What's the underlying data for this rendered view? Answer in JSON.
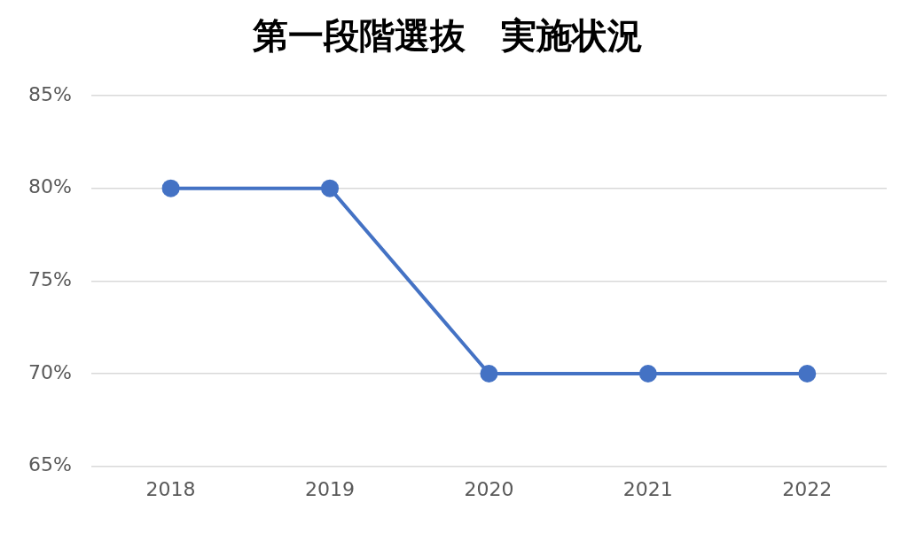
{
  "chart_data": {
    "type": "line",
    "title": "第一段階選抜　実施状況",
    "categories": [
      "2018",
      "2019",
      "2020",
      "2021",
      "2022"
    ],
    "series": [
      {
        "color": "#4472c4",
        "values": [
          80,
          80,
          70,
          70,
          70
        ]
      }
    ],
    "ylim": [
      65,
      85
    ],
    "yticks": [
      {
        "value": 65,
        "label": "65%"
      },
      {
        "value": 70,
        "label": "70%"
      },
      {
        "value": 75,
        "label": "75%"
      },
      {
        "value": 80,
        "label": "80%"
      },
      {
        "value": 85,
        "label": "85%"
      }
    ],
    "grid": "y",
    "legend": false,
    "marker": "circle",
    "line_style": "solid"
  }
}
